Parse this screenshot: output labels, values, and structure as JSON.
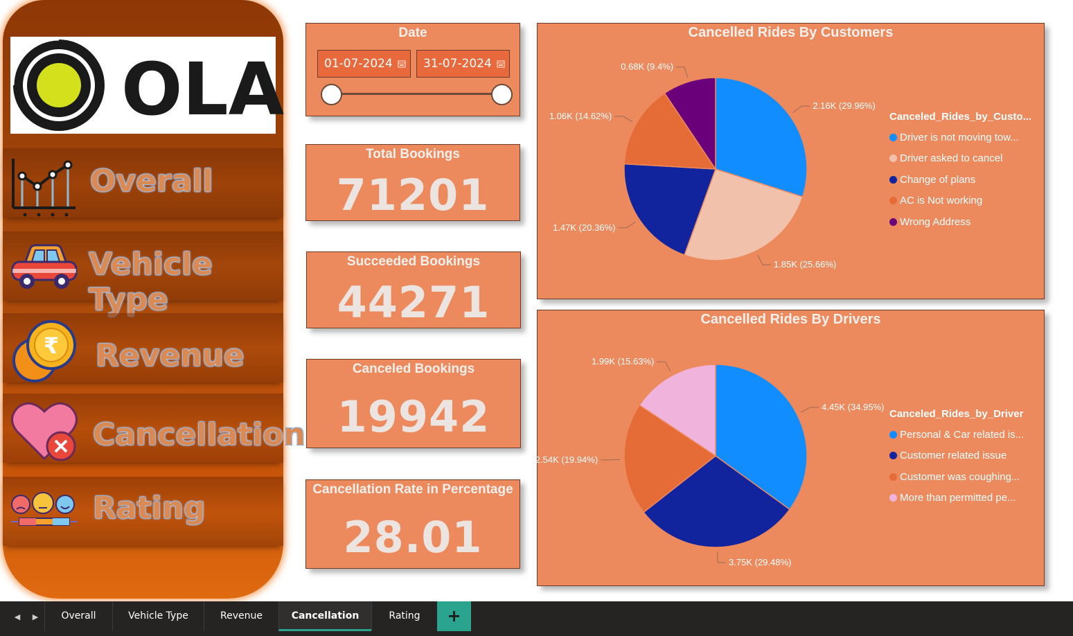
{
  "brand": {
    "logo_text": "OLA"
  },
  "sidebar": {
    "items": [
      {
        "label": "Overall",
        "icon": "line-chart-icon"
      },
      {
        "label": "Vehicle Type",
        "icon": "car-icon"
      },
      {
        "label": "Revenue",
        "icon": "rupee-coins-icon"
      },
      {
        "label": "Cancellation",
        "icon": "heart-cancel-icon"
      },
      {
        "label": "Rating",
        "icon": "emoji-rating-icon"
      }
    ]
  },
  "date_filter": {
    "title": "Date",
    "start": "01-07-2024",
    "end": "31-07-2024",
    "range_start_fraction": 0,
    "range_end_fraction": 1
  },
  "kpis": {
    "total_bookings": {
      "title": "Total Bookings",
      "value": "71201"
    },
    "succeeded_bookings": {
      "title": "Succeeded Bookings",
      "value": "44271"
    },
    "canceled_bookings": {
      "title": "Canceled Bookings",
      "value": "19942"
    },
    "cancellation_rate": {
      "title": "Cancellation Rate in Percentage",
      "value": "28.01"
    }
  },
  "colors": {
    "card_bg": "#ec8a5e",
    "sidebar_dark": "#8f3806",
    "tab_accent": "#2aa48f"
  },
  "chart_data": [
    {
      "type": "pie",
      "title": "Cancelled Rides By Customers",
      "legend_title": "Canceled_Rides_by_Custo...",
      "legend_position": "right",
      "slices": [
        {
          "label": "Driver is not moving tow...",
          "value": 2160,
          "percent": 29.96,
          "data_label": "2.16K (29.96%)",
          "color": "#118dff"
        },
        {
          "label": "Driver asked to cancel",
          "value": 1850,
          "percent": 25.66,
          "data_label": "1.85K (25.66%)",
          "color": "#f2c1ac"
        },
        {
          "label": "Change of plans",
          "value": 1470,
          "percent": 20.36,
          "data_label": "1.47K (20.36%)",
          "color": "#12239e"
        },
        {
          "label": "AC is Not working",
          "value": 1060,
          "percent": 14.62,
          "data_label": "1.06K (14.62%)",
          "color": "#e66c37"
        },
        {
          "label": "Wrong Address",
          "value": 680,
          "percent": 9.4,
          "data_label": "0.68K (9.4%)",
          "color": "#6b007b"
        }
      ]
    },
    {
      "type": "pie",
      "title": "Cancelled Rides By Drivers",
      "legend_title": "Canceled_Rides_by_Driver",
      "legend_position": "right",
      "slices": [
        {
          "label": "Personal & Car related is...",
          "value": 4450,
          "percent": 34.95,
          "data_label": "4.45K (34.95%)",
          "color": "#118dff"
        },
        {
          "label": "Customer related issue",
          "value": 3750,
          "percent": 29.48,
          "data_label": "3.75K (29.48%)",
          "color": "#12239e"
        },
        {
          "label": "Customer was coughing...",
          "value": 2540,
          "percent": 19.94,
          "data_label": "2.54K (19.94%)",
          "color": "#e66c37"
        },
        {
          "label": "More than permitted pe...",
          "value": 1990,
          "percent": 15.63,
          "data_label": "1.99K (15.63%)",
          "color": "#f0b4dc"
        }
      ]
    }
  ],
  "tabs": {
    "items": [
      "Overall",
      "Vehicle Type",
      "Revenue",
      "Cancellation",
      "Rating"
    ],
    "active": "Cancellation",
    "add_label": "+"
  }
}
